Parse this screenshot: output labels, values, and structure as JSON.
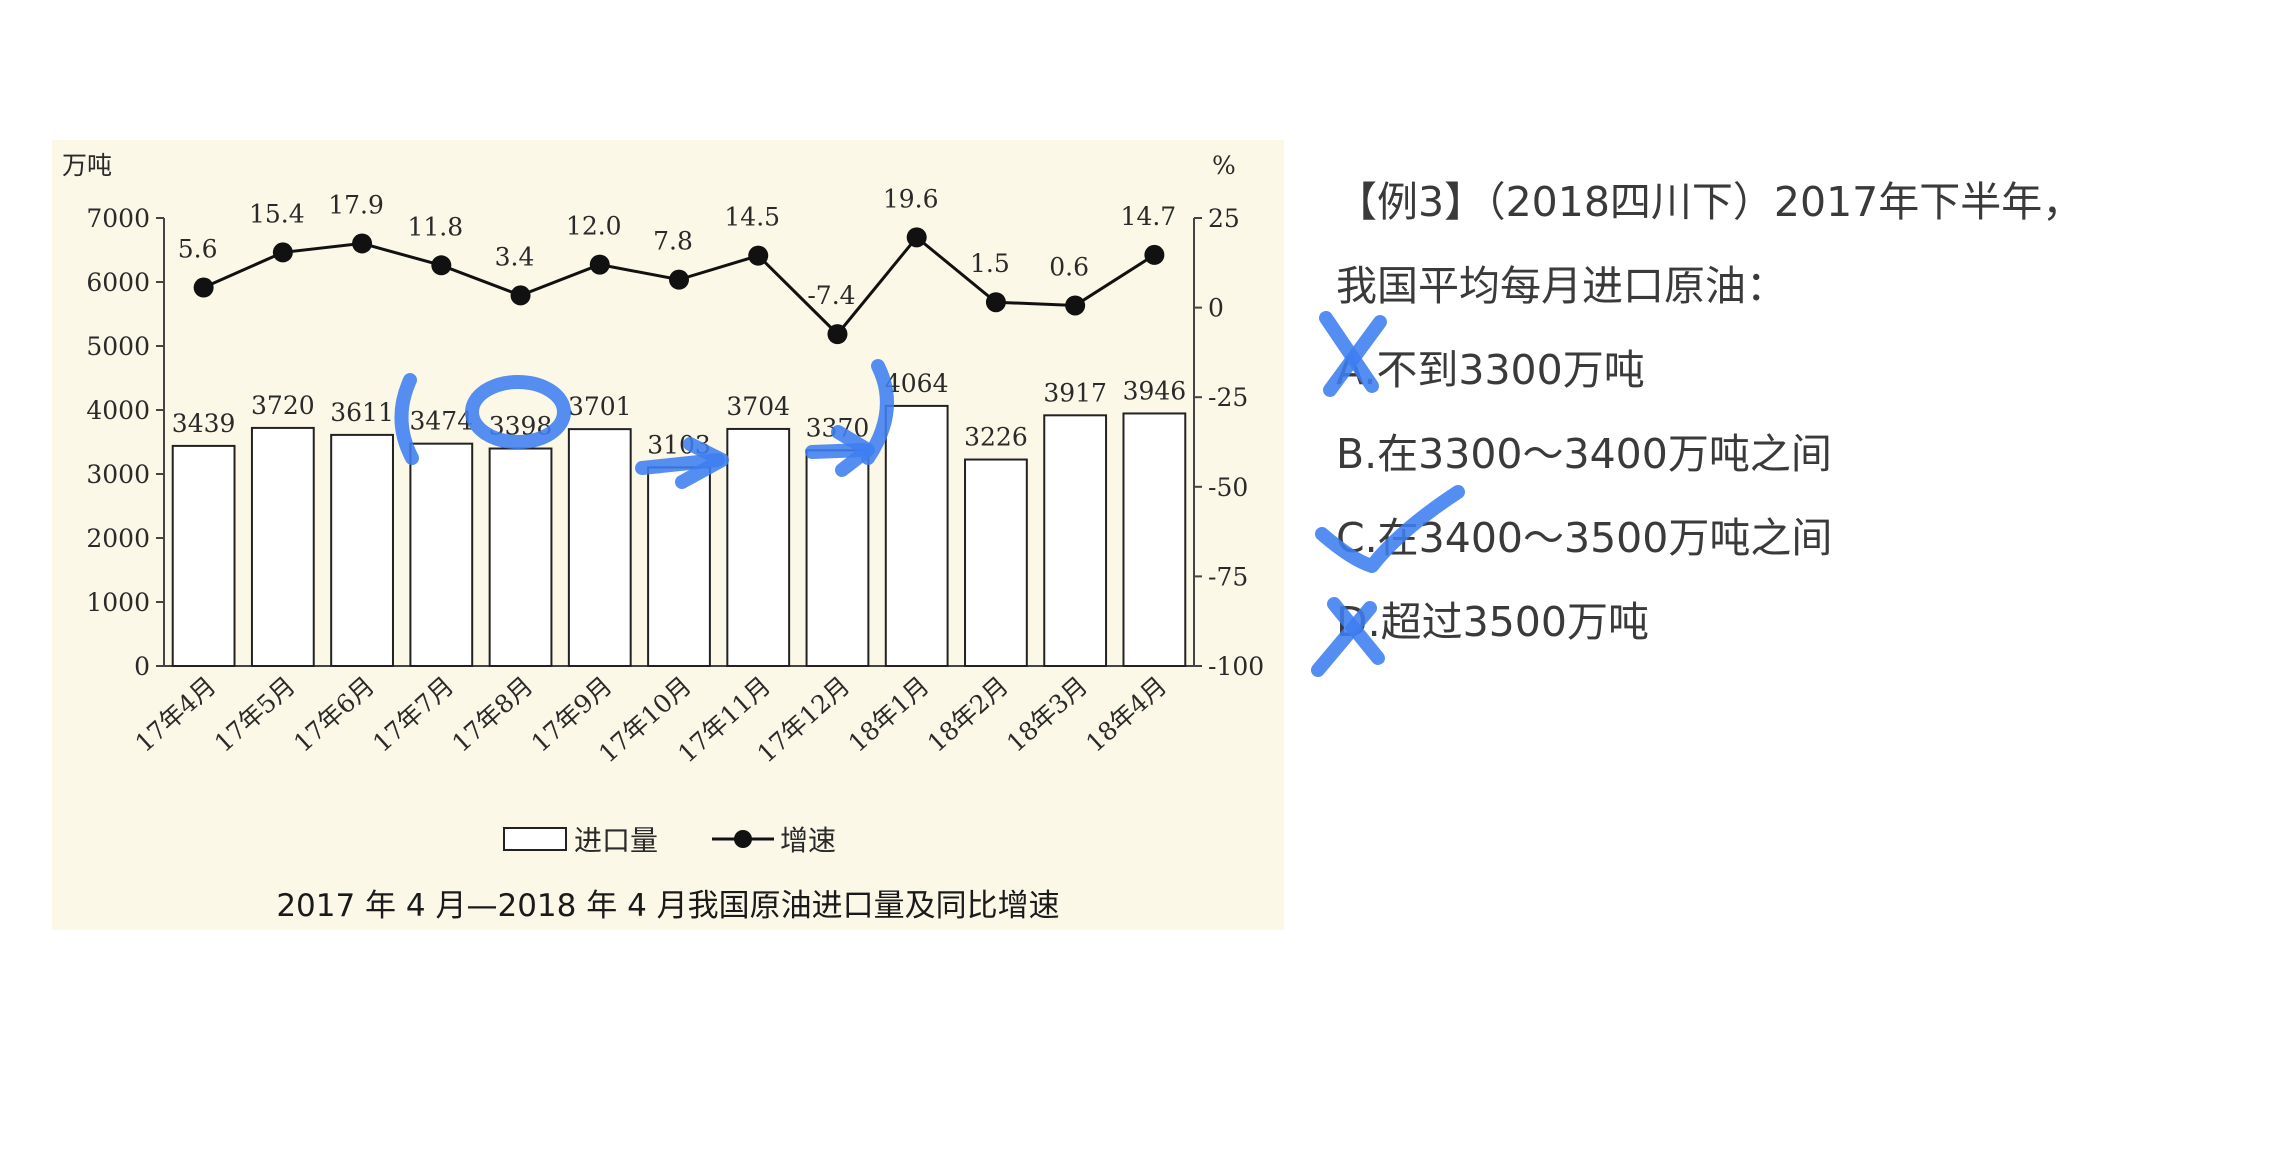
{
  "chart_data": {
    "type": "bar+line",
    "title": "2017 年 4 月—2018 年 4 月我国原油进口量及同比增速",
    "left_axis_unit": "万吨",
    "right_axis_unit": "%",
    "left_ylim": [
      0,
      7000
    ],
    "left_ticks": [
      "0",
      "1000",
      "2000",
      "3000",
      "4000",
      "5000",
      "6000",
      "7000"
    ],
    "right_ylim": [
      -100,
      25
    ],
    "right_ticks": [
      "-100",
      "-75",
      "-50",
      "-25",
      "0",
      "25"
    ],
    "categories": [
      "17年4月",
      "17年5月",
      "17年6月",
      "17年7月",
      "17年8月",
      "17年9月",
      "17年10月",
      "17年11月",
      "17年12月",
      "18年1月",
      "18年2月",
      "18年3月",
      "18年4月"
    ],
    "series": [
      {
        "name": "进口量",
        "kind": "bar",
        "axis": "left",
        "values": [
          3439,
          3720,
          3611,
          3474,
          3398,
          3701,
          3103,
          3704,
          3370,
          4064,
          3226,
          3917,
          3946
        ],
        "labels": [
          "3439",
          "3720",
          "3611",
          "3474",
          "3398",
          "3701",
          "3103",
          "3704",
          "3370",
          "4064",
          "3226",
          "3917",
          "3946"
        ]
      },
      {
        "name": "增速",
        "kind": "line",
        "axis": "right",
        "values": [
          5.6,
          15.4,
          17.9,
          11.8,
          3.4,
          12.0,
          7.8,
          14.5,
          -7.4,
          19.6,
          1.5,
          0.6,
          14.7
        ],
        "labels": [
          "5.6",
          "15.4",
          "17.9",
          "11.8",
          "3.4",
          "12.0",
          "7.8",
          "14.5",
          "-7.4",
          "19.6",
          "1.5",
          "0.6",
          "14.7"
        ]
      }
    ],
    "legend": {
      "position": "bottom",
      "bar_label": "进口量",
      "line_label": "增速"
    },
    "colors": {
      "bar_fill": "#ffffff",
      "bar_stroke": "#222222",
      "line": "#111111",
      "background": "#fbf8e8"
    }
  },
  "question": {
    "lines": [
      "【例3】（2018四川下）2017年下半年，",
      "我国平均每月进口原油：",
      "A.不到3300万吨",
      "B.在3300～3400万吨之间",
      "C.在3400～3500万吨之间",
      "D.超过3500万吨"
    ]
  },
  "annotations": {
    "color": "#3d7ef0",
    "marks": [
      "cross-on-A",
      "check-on-C",
      "cross-on-D",
      "circle-around-3398",
      "left-bracket-3474",
      "right-bracket-4064",
      "arrow-3103",
      "arrow-3370"
    ]
  }
}
